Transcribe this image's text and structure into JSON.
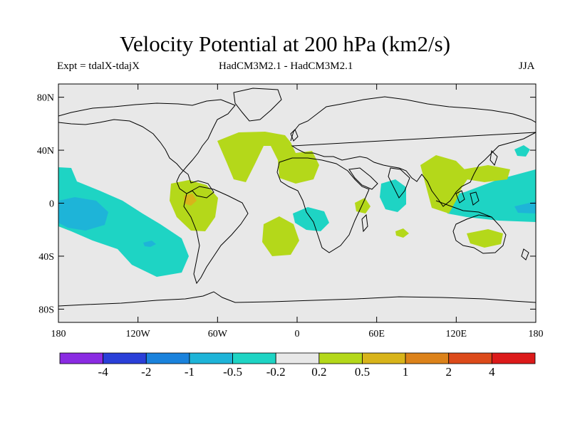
{
  "title": "Velocity Potential at 200 hPa (km2/s)",
  "experiment": "Expt = tdalX-tdajX",
  "models": "HadCM3M2.1 - HadCM3M2.1",
  "season": "JJA",
  "map": {
    "lon_range": [
      -180,
      180
    ],
    "lat_range": [
      -90,
      90
    ],
    "x_ticks": [
      {
        "lon": -180,
        "label": "180"
      },
      {
        "lon": -120,
        "label": "120W"
      },
      {
        "lon": -60,
        "label": "60W"
      },
      {
        "lon": 0,
        "label": "0"
      },
      {
        "lon": 60,
        "label": "60E"
      },
      {
        "lon": 120,
        "label": "120E"
      },
      {
        "lon": 180,
        "label": "180"
      }
    ],
    "y_ticks": [
      {
        "lat": 80,
        "label": "80N"
      },
      {
        "lat": 40,
        "label": "40N"
      },
      {
        "lat": 0,
        "label": "0"
      },
      {
        "lat": -40,
        "label": "40S"
      },
      {
        "lat": -80,
        "label": "80S"
      }
    ],
    "background_color": "#e8e8e8"
  },
  "colorbar": {
    "colors": [
      "#8a2be2",
      "#2a3fd8",
      "#1a82dc",
      "#1eb4d8",
      "#1ed4c4",
      "#e8e8e8",
      "#b4d81a",
      "#d8b41a",
      "#dc821a",
      "#dc4a1a",
      "#dc1a1a"
    ],
    "labels": [
      "-4",
      "-2",
      "-1",
      "-0.5",
      "-0.2",
      "0.2",
      "0.5",
      "1",
      "2",
      "4"
    ]
  }
}
